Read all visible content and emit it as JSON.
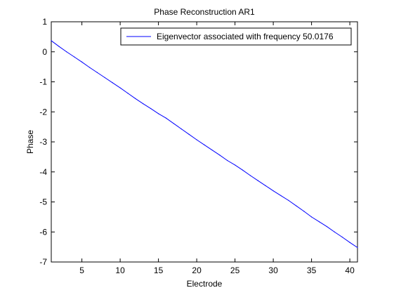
{
  "chart_data": {
    "type": "line",
    "title": "Phase Reconstruction AR1",
    "xlabel": "Electrode",
    "ylabel": "Phase",
    "xlim": [
      1,
      41
    ],
    "ylim": [
      -7,
      1
    ],
    "xticks": [
      5,
      10,
      15,
      20,
      25,
      30,
      35,
      40
    ],
    "yticks": [
      1,
      0,
      -1,
      -2,
      -3,
      -4,
      -5,
      -6,
      -7
    ],
    "grid": false,
    "legend_position": "top-right",
    "series": [
      {
        "name": "Eigenvector associated with frequency 50.0176",
        "color": "#0000ff",
        "x": [
          1,
          2,
          3,
          4,
          5,
          6,
          7,
          8,
          9,
          10,
          11,
          12,
          13,
          14,
          15,
          16,
          17,
          18,
          19,
          20,
          21,
          22,
          23,
          24,
          25,
          26,
          27,
          28,
          29,
          30,
          31,
          32,
          33,
          34,
          35,
          36,
          37,
          38,
          39,
          40,
          41
        ],
        "y": [
          0.37,
          0.18,
          0.0,
          -0.17,
          -0.34,
          -0.52,
          -0.69,
          -0.86,
          -1.03,
          -1.2,
          -1.38,
          -1.56,
          -1.73,
          -1.89,
          -2.06,
          -2.21,
          -2.39,
          -2.57,
          -2.75,
          -2.93,
          -3.1,
          -3.27,
          -3.44,
          -3.62,
          -3.77,
          -3.94,
          -4.12,
          -4.29,
          -4.46,
          -4.63,
          -4.79,
          -4.95,
          -5.13,
          -5.31,
          -5.5,
          -5.66,
          -5.82,
          -6.0,
          -6.17,
          -6.35,
          -6.52
        ]
      }
    ]
  }
}
